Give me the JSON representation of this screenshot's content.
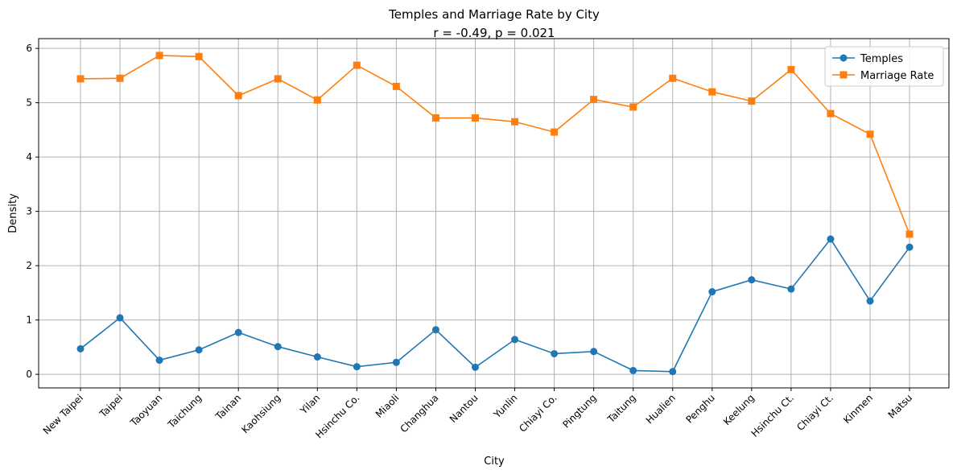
{
  "chart_data": {
    "type": "line",
    "title": "Temples and Marriage Rate by City",
    "subtitle": "r = -0.49, p = 0.021",
    "xlabel": "City",
    "ylabel": "Density",
    "ylim": [
      -0.25,
      6.18
    ],
    "yticks": [
      "0",
      "1",
      "2",
      "3",
      "4",
      "5",
      "6"
    ],
    "grid": true,
    "legend_position": "top-right",
    "categories": [
      "New Taipei",
      "Taipei",
      "Taoyuan",
      "Taichung",
      "Tainan",
      "Kaohsiung",
      "Yilan",
      "Hsinchu Co.",
      "Miaoli",
      "Changhua",
      "Nantou",
      "Yunlin",
      "Chiayi Co.",
      "Pingtung",
      "Taitung",
      "Hualien",
      "Penghu",
      "Keelung",
      "Hsinchu Ct.",
      "Chiayi Ct.",
      "Kinmen",
      "Matsu"
    ],
    "series": [
      {
        "name": "Temples",
        "color": "#1f77b4",
        "marker": "circle",
        "values": [
          0.47,
          1.04,
          0.26,
          0.45,
          0.77,
          0.51,
          0.32,
          0.14,
          0.22,
          0.82,
          0.13,
          0.64,
          0.38,
          0.42,
          0.07,
          0.05,
          1.52,
          1.74,
          1.57,
          2.49,
          1.35,
          2.34
        ]
      },
      {
        "name": "Marriage Rate",
        "color": "#ff7f0e",
        "marker": "square",
        "values": [
          5.44,
          5.45,
          5.87,
          5.85,
          5.13,
          5.44,
          5.05,
          5.69,
          5.3,
          4.72,
          4.72,
          4.65,
          4.46,
          5.06,
          4.92,
          5.45,
          5.2,
          5.03,
          5.61,
          4.8,
          4.42,
          2.58
        ]
      }
    ]
  }
}
